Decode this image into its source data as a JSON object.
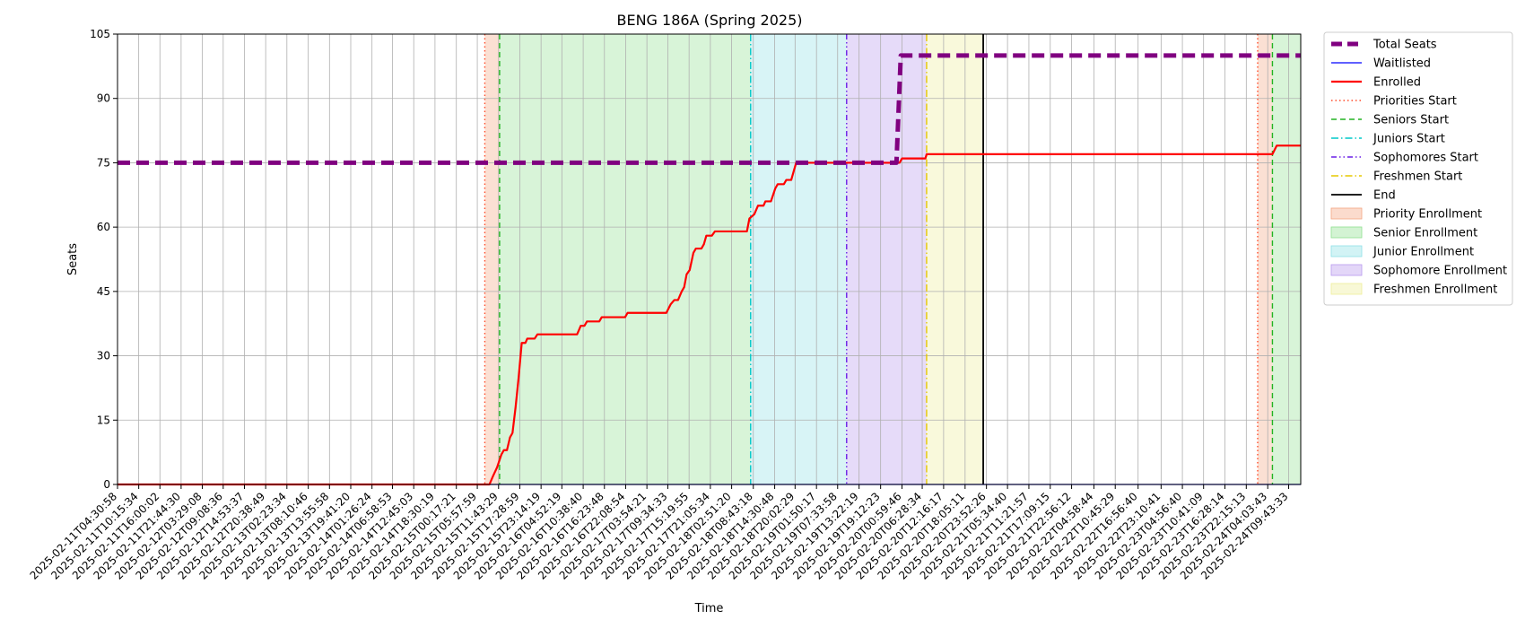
{
  "chart_data": {
    "type": "line",
    "title": "BENG 186A (Spring 2025)",
    "xlabel": "Time",
    "ylabel": "Seats",
    "xlim": [
      "2025-02-11T04:30:58",
      "2025-02-24T13:00:00"
    ],
    "ylim": [
      0,
      105
    ],
    "y_ticks": [
      0,
      15,
      30,
      45,
      60,
      75,
      90,
      105
    ],
    "x_tick_labels": [
      "2025-02-11T04:30:58",
      "2025-02-11T10:15:34",
      "2025-02-11T16:00:02",
      "2025-02-11T21:44:30",
      "2025-02-12T03:29:08",
      "2025-02-12T09:08:36",
      "2025-02-12T14:53:37",
      "2025-02-12T20:38:49",
      "2025-02-13T02:23:34",
      "2025-02-13T08:10:46",
      "2025-02-13T13:55:58",
      "2025-02-13T19:41:20",
      "2025-02-14T01:26:24",
      "2025-02-14T06:58:53",
      "2025-02-14T12:45:03",
      "2025-02-14T18:30:19",
      "2025-02-15T00:17:21",
      "2025-02-15T05:57:59",
      "2025-02-15T11:43:29",
      "2025-02-15T17:28:59",
      "2025-02-15T23:14:19",
      "2025-02-16T04:52:19",
      "2025-02-16T10:38:40",
      "2025-02-16T16:23:48",
      "2025-02-16T22:08:54",
      "2025-02-17T03:54:21",
      "2025-02-17T09:34:33",
      "2025-02-17T15:19:55",
      "2025-02-17T21:05:34",
      "2025-02-18T02:51:20",
      "2025-02-18T08:43:18",
      "2025-02-18T14:30:48",
      "2025-02-18T20:02:29",
      "2025-02-19T01:50:17",
      "2025-02-19T07:33:58",
      "2025-02-19T13:22:19",
      "2025-02-19T19:12:23",
      "2025-02-20T00:59:46",
      "2025-02-20T06:28:34",
      "2025-02-20T12:16:17",
      "2025-02-20T18:05:11",
      "2025-02-20T23:52:26",
      "2025-02-21T05:34:40",
      "2025-02-21T11:21:57",
      "2025-02-21T17:09:15",
      "2025-02-21T22:56:12",
      "2025-02-22T04:58:44",
      "2025-02-22T10:45:29",
      "2025-02-22T16:56:40",
      "2025-02-22T23:10:41",
      "2025-02-23T04:56:40",
      "2025-02-23T10:41:09",
      "2025-02-23T16:28:14",
      "2025-02-23T22:15:13",
      "2025-02-24T04:03:43",
      "2025-02-24T09:43:33"
    ],
    "grid": true,
    "legend_position": "outside-top-right",
    "series": [
      {
        "name": "Total Seats",
        "color": "#800080",
        "style": "dashed-thick",
        "points": [
          [
            "2025-02-11T04:30:58",
            75
          ],
          [
            "2025-02-19T23:30:00",
            75
          ],
          [
            "2025-02-20T00:40:00",
            100
          ],
          [
            "2025-02-24T13:00:00",
            100
          ]
        ]
      },
      {
        "name": "Waitlisted",
        "color": "#0000ff",
        "style": "solid-thin",
        "points": [
          [
            "2025-02-11T04:30:58",
            0
          ],
          [
            "2025-02-24T13:00:00",
            0
          ]
        ]
      },
      {
        "name": "Enrolled",
        "color": "#ff0000",
        "style": "solid",
        "points": [
          [
            "2025-02-11T04:30:58",
            0
          ],
          [
            "2025-02-15T09:15:00",
            0
          ],
          [
            "2025-02-15T10:15:00",
            2
          ],
          [
            "2025-02-15T11:20:00",
            4
          ],
          [
            "2025-02-15T12:30:00",
            7
          ],
          [
            "2025-02-15T13:10:00",
            8
          ],
          [
            "2025-02-15T14:00:00",
            8
          ],
          [
            "2025-02-15T14:50:00",
            11
          ],
          [
            "2025-02-15T15:30:00",
            12
          ],
          [
            "2025-02-15T16:20:00",
            18
          ],
          [
            "2025-02-15T17:10:00",
            25
          ],
          [
            "2025-02-15T18:00:00",
            33
          ],
          [
            "2025-02-15T19:00:00",
            33
          ],
          [
            "2025-02-15T19:30:00",
            34
          ],
          [
            "2025-02-15T21:30:00",
            34
          ],
          [
            "2025-02-15T22:15:00",
            35
          ],
          [
            "2025-02-16T09:00:00",
            35
          ],
          [
            "2025-02-16T10:00:00",
            37
          ],
          [
            "2025-02-16T11:00:00",
            37
          ],
          [
            "2025-02-16T11:40:00",
            38
          ],
          [
            "2025-02-16T15:00:00",
            38
          ],
          [
            "2025-02-16T15:40:00",
            39
          ],
          [
            "2025-02-16T22:00:00",
            39
          ],
          [
            "2025-02-16T22:40:00",
            40
          ],
          [
            "2025-02-17T09:10:00",
            40
          ],
          [
            "2025-02-17T10:20:00",
            42
          ],
          [
            "2025-02-17T11:20:00",
            43
          ],
          [
            "2025-02-17T12:20:00",
            43
          ],
          [
            "2025-02-17T13:20:00",
            45
          ],
          [
            "2025-02-17T14:00:00",
            46
          ],
          [
            "2025-02-17T14:40:00",
            49
          ],
          [
            "2025-02-17T15:30:00",
            50
          ],
          [
            "2025-02-17T16:30:00",
            54
          ],
          [
            "2025-02-17T17:10:00",
            55
          ],
          [
            "2025-02-17T18:40:00",
            55
          ],
          [
            "2025-02-17T19:20:00",
            56
          ],
          [
            "2025-02-17T20:00:00",
            58
          ],
          [
            "2025-02-17T21:30:00",
            58
          ],
          [
            "2025-02-17T22:20:00",
            59
          ],
          [
            "2025-02-18T07:00:00",
            59
          ],
          [
            "2025-02-18T07:40:00",
            62
          ],
          [
            "2025-02-18T09:00:00",
            63
          ],
          [
            "2025-02-18T10:00:00",
            65
          ],
          [
            "2025-02-18T11:30:00",
            65
          ],
          [
            "2025-02-18T12:00:00",
            66
          ],
          [
            "2025-02-18T13:30:00",
            66
          ],
          [
            "2025-02-18T14:40:00",
            69
          ],
          [
            "2025-02-18T15:20:00",
            70
          ],
          [
            "2025-02-18T17:00:00",
            70
          ],
          [
            "2025-02-18T17:40:00",
            71
          ],
          [
            "2025-02-18T19:00:00",
            71
          ],
          [
            "2025-02-18T19:40:00",
            73
          ],
          [
            "2025-02-18T20:20:00",
            75
          ],
          [
            "2025-02-20T00:20:00",
            75
          ],
          [
            "2025-02-20T01:00:00",
            76
          ],
          [
            "2025-02-20T07:20:00",
            76
          ],
          [
            "2025-02-20T07:40:00",
            77
          ],
          [
            "2025-02-24T05:20:00",
            77
          ],
          [
            "2025-02-24T06:30:00",
            79
          ],
          [
            "2025-02-24T13:00:00",
            79
          ]
        ]
      }
    ],
    "markers": [
      {
        "name": "Priorities Start",
        "time": "2025-02-15T08:00:00",
        "color": "#ff4c2b",
        "style": "dotted"
      },
      {
        "name": "Seniors Start",
        "time": "2025-02-15T12:00:00",
        "color": "#22b422",
        "style": "dashed"
      },
      {
        "name": "Juniors Start",
        "time": "2025-02-18T08:00:00",
        "color": "#00c8c8",
        "style": "dashdot"
      },
      {
        "name": "Sophomores Start",
        "time": "2025-02-19T10:00:00",
        "color": "#6a1ee6",
        "style": "dashdotdot"
      },
      {
        "name": "Freshmen Start",
        "time": "2025-02-20T07:40:00",
        "color": "#e6c800",
        "style": "dashdot"
      },
      {
        "name": "End",
        "time": "2025-02-20T23:00:00",
        "color": "#000000",
        "style": "solid"
      },
      {
        "name": "Priorities Start",
        "time": "2025-02-24T01:20:00",
        "color": "#ff4c2b",
        "style": "dotted",
        "in_legend": false
      },
      {
        "name": "Seniors Start",
        "time": "2025-02-24T05:20:00",
        "color": "#22b422",
        "style": "dashed",
        "in_legend": false
      }
    ],
    "bands": [
      {
        "name": "Priority Enrollment",
        "from": "2025-02-15T08:00:00",
        "to": "2025-02-15T12:00:00",
        "color": "#f4a582"
      },
      {
        "name": "Senior Enrollment",
        "from": "2025-02-15T12:00:00",
        "to": "2025-02-18T08:00:00",
        "color": "#90e090"
      },
      {
        "name": "Junior Enrollment",
        "from": "2025-02-18T08:00:00",
        "to": "2025-02-19T10:00:00",
        "color": "#8fe0e6"
      },
      {
        "name": "Sophomore Enrollment",
        "from": "2025-02-19T10:00:00",
        "to": "2025-02-20T07:40:00",
        "color": "#b899ee"
      },
      {
        "name": "Freshmen Enrollment",
        "from": "2025-02-20T07:40:00",
        "to": "2025-02-20T23:00:00",
        "color": "#eeee99"
      },
      {
        "name": "Priority Enrollment",
        "from": "2025-02-24T01:20:00",
        "to": "2025-02-24T05:20:00",
        "color": "#f4a582",
        "in_legend": false
      },
      {
        "name": "Senior Enrollment",
        "from": "2025-02-24T05:20:00",
        "to": "2025-02-24T13:00:00",
        "color": "#90e090",
        "in_legend": false
      }
    ],
    "legend": [
      "Total Seats",
      "Waitlisted",
      "Enrolled",
      "Priorities Start",
      "Seniors Start",
      "Juniors Start",
      "Sophomores Start",
      "Freshmen Start",
      "End",
      "Priority Enrollment",
      "Senior Enrollment",
      "Junior Enrollment",
      "Sophomore Enrollment",
      "Freshmen Enrollment"
    ]
  }
}
